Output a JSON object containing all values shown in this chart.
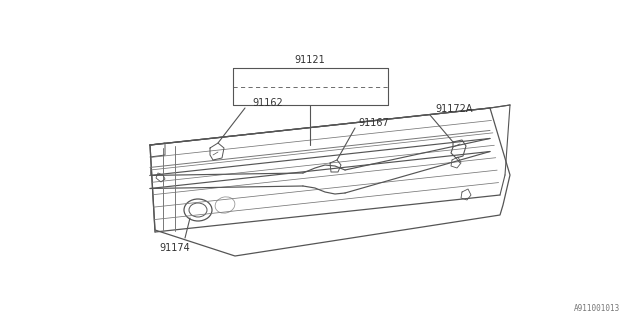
{
  "background_color": "#ffffff",
  "line_color": "#555555",
  "text_color": "#333333",
  "diagram_id": "A911001013",
  "fig_width": 6.4,
  "fig_height": 3.2,
  "dpi": 100
}
